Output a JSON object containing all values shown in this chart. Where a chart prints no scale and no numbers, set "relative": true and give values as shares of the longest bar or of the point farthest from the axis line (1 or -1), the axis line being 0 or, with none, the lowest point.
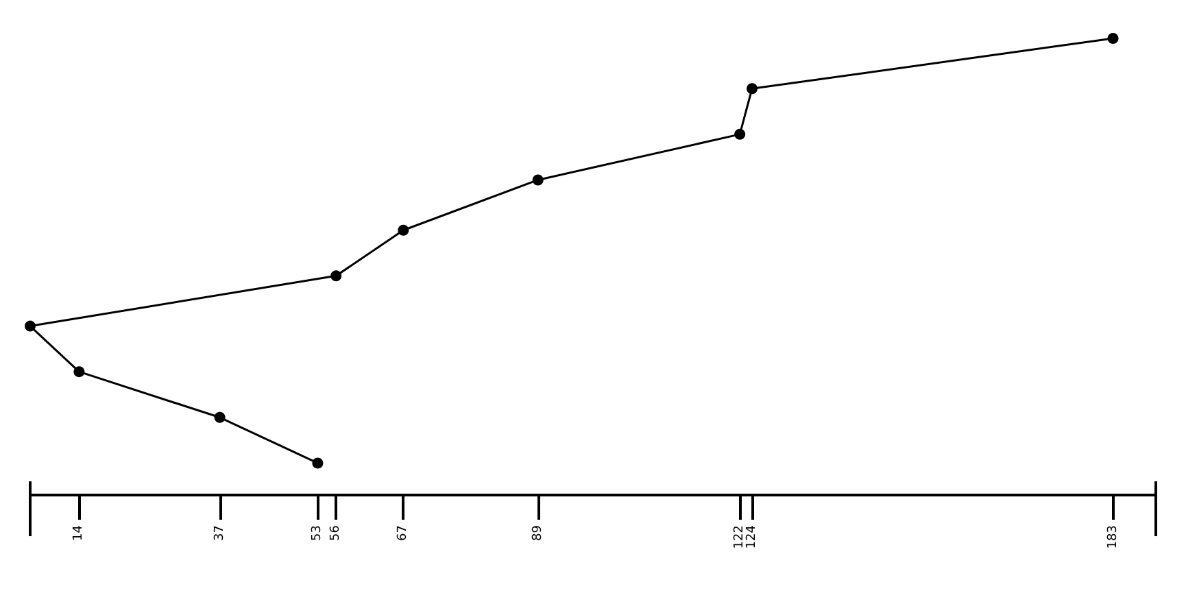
{
  "chart_data": {
    "type": "line",
    "relative": true,
    "x": [
      53,
      37,
      14,
      6,
      56,
      67,
      89,
      122,
      124,
      183
    ],
    "series": [
      {
        "color": "#000000",
        "values": [
          0.07,
          0.17,
          0.27,
          0.37,
          0.48,
          0.58,
          0.69,
          0.79,
          0.89,
          1.0
        ]
      }
    ],
    "xlim": [
      6,
      190
    ],
    "xticks": [
      14,
      37,
      53,
      56,
      67,
      89,
      122,
      124,
      183
    ],
    "tick_labels": "x",
    "marker": "circle",
    "line_style": "solid",
    "grid": false
  }
}
